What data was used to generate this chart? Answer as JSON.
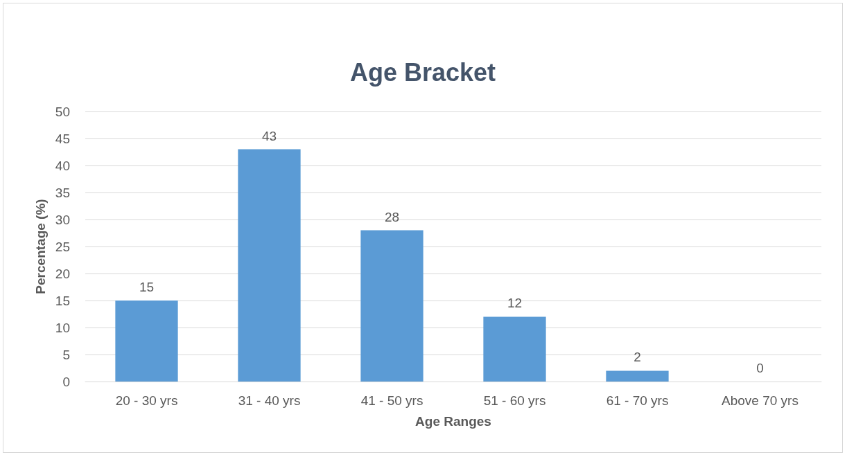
{
  "chart_data": {
    "type": "bar",
    "title": "Age Bracket",
    "xlabel": "Age Ranges",
    "ylabel": "Percentage (%)",
    "categories": [
      "20 - 30 yrs",
      "31 - 40 yrs",
      "41 - 50 yrs",
      "51 - 60 yrs",
      "61 - 70 yrs",
      "Above 70 yrs"
    ],
    "values": [
      15,
      43,
      28,
      12,
      2,
      0
    ],
    "color": "#5b9bd5",
    "ylim": [
      0,
      50
    ],
    "yticks": [
      0,
      5,
      10,
      15,
      20,
      25,
      30,
      35,
      40,
      45,
      50
    ],
    "grid": "y",
    "data_labels": true
  }
}
